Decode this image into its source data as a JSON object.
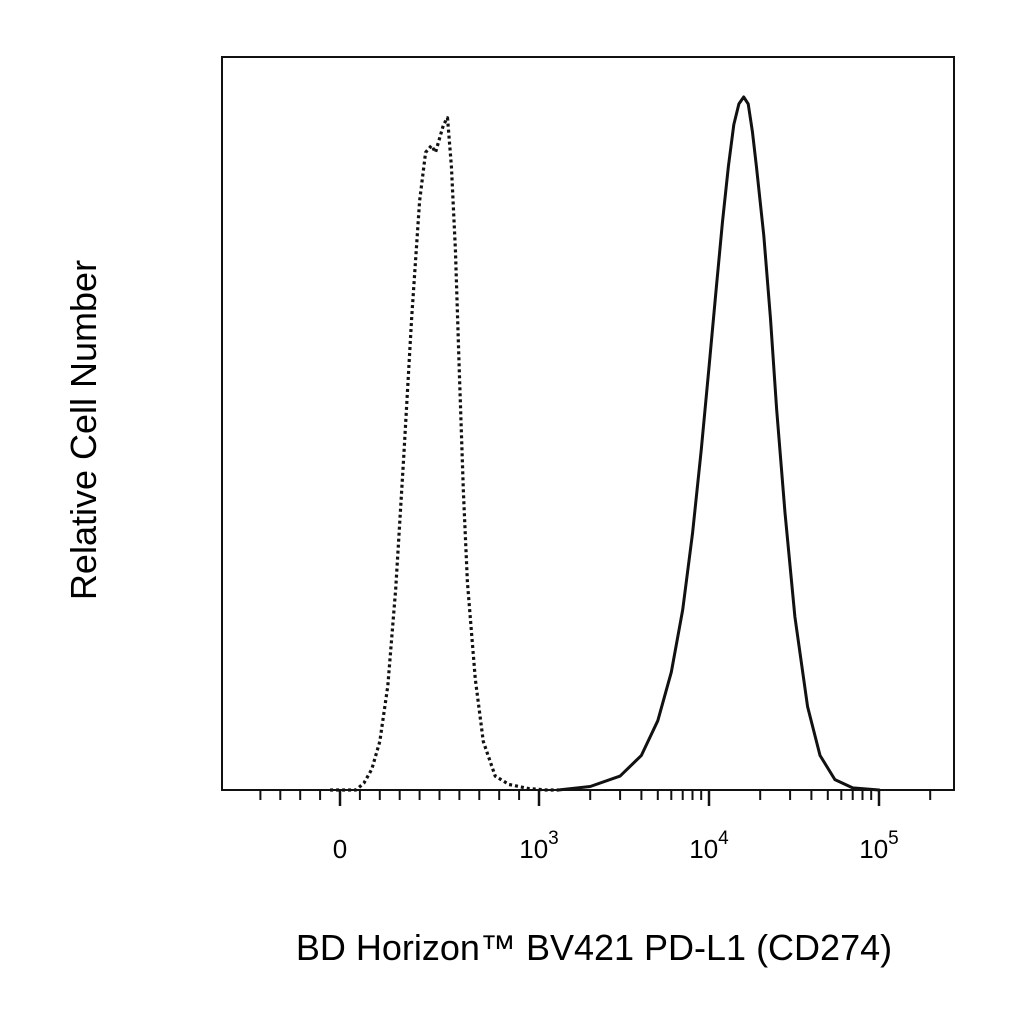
{
  "chart_data": {
    "type": "line",
    "title": "",
    "xlabel": "BD Horizon™ BV421 PD-L1 (CD274)",
    "ylabel": "Relative Cell Number",
    "xscale": "biexponential",
    "xlim": [
      -400,
      160000
    ],
    "ylim": [
      0,
      1
    ],
    "grid": false,
    "legend": "none",
    "x_tick_labels": [
      {
        "value": 0,
        "base": "0",
        "exp": ""
      },
      {
        "value": 1000,
        "base": "10",
        "exp": "3"
      },
      {
        "value": 10000,
        "base": "10",
        "exp": "4"
      },
      {
        "value": 100000,
        "base": "10",
        "exp": "5"
      }
    ],
    "series": [
      {
        "style": "dotted",
        "color": "#111111",
        "x": [
          -50,
          80,
          120,
          160,
          200,
          240,
          280,
          320,
          360,
          400,
          430,
          460,
          480,
          500,
          520,
          540,
          560,
          580,
          600,
          620,
          640,
          680,
          720,
          780,
          850,
          950,
          1100,
          1300
        ],
        "y": [
          0.0,
          0.0,
          0.01,
          0.03,
          0.07,
          0.15,
          0.29,
          0.48,
          0.68,
          0.85,
          0.92,
          0.93,
          0.92,
          0.94,
          0.96,
          0.97,
          0.9,
          0.78,
          0.6,
          0.43,
          0.3,
          0.16,
          0.07,
          0.02,
          0.008,
          0.002,
          0.0,
          0.0
        ]
      },
      {
        "style": "solid",
        "color": "#111111",
        "x": [
          1300,
          2000,
          3000,
          4000,
          5000,
          6000,
          7000,
          8000,
          9000,
          10000,
          11000,
          12000,
          13000,
          14000,
          15000,
          16000,
          17000,
          18000,
          19000,
          21000,
          23000,
          25000,
          28000,
          32000,
          38000,
          45000,
          55000,
          70000,
          100000
        ],
        "y": [
          0.0,
          0.005,
          0.02,
          0.05,
          0.1,
          0.17,
          0.26,
          0.37,
          0.49,
          0.61,
          0.72,
          0.82,
          0.9,
          0.96,
          0.99,
          1.0,
          0.99,
          0.95,
          0.9,
          0.8,
          0.68,
          0.55,
          0.4,
          0.25,
          0.12,
          0.05,
          0.015,
          0.003,
          0.0
        ]
      }
    ]
  }
}
